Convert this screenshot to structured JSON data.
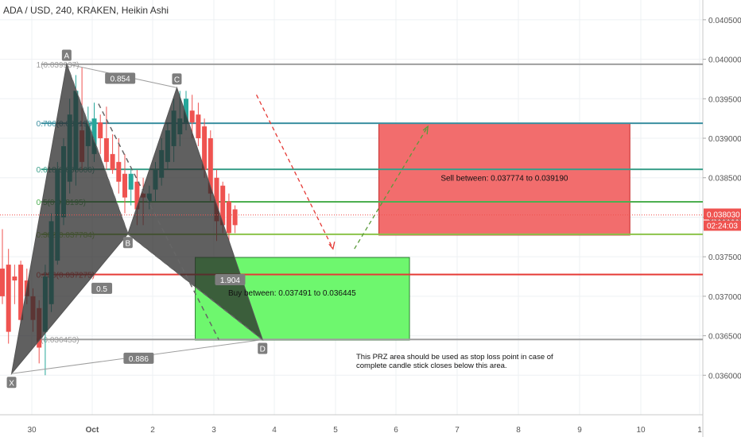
{
  "header": {
    "title": "ADA / USD, 240, KRAKEN, Heikin Ashi"
  },
  "chart_data": {
    "type": "candlestick",
    "symbol": "ADA / USD",
    "interval": "240",
    "exchange": "KRAKEN",
    "style": "Heikin Ashi",
    "ylim": [
      0.0355,
      0.04075
    ],
    "y_ticks": [
      "0.040500",
      "0.040000",
      "0.039500",
      "0.039000",
      "0.038500",
      "0.038000",
      "0.037500",
      "0.037000",
      "0.036500",
      "0.036000"
    ],
    "x_tick_labels": [
      "30",
      "Oct",
      "2",
      "3",
      "4",
      "5",
      "6",
      "7",
      "8",
      "9",
      "10",
      "1"
    ],
    "current_price": "0.038030",
    "countdown": "02:24:03",
    "colors": {
      "up": "#26a69a",
      "down": "#ef5350",
      "pattern_fill": "#2b2b2b",
      "sell_zone": "#f26d6d",
      "buy_zone": "#6ef76e"
    },
    "candles": [
      {
        "o": 0.03735,
        "h": 0.03785,
        "l": 0.0369,
        "c": 0.037
      },
      {
        "o": 0.0374,
        "h": 0.0376,
        "l": 0.0364,
        "c": 0.03655
      },
      {
        "o": 0.03725,
        "h": 0.0374,
        "l": 0.0369,
        "c": 0.0372
      },
      {
        "o": 0.0374,
        "h": 0.03745,
        "l": 0.03665,
        "c": 0.0367
      },
      {
        "o": 0.0372,
        "h": 0.03735,
        "l": 0.0369,
        "c": 0.037
      },
      {
        "o": 0.037,
        "h": 0.0371,
        "l": 0.03655,
        "c": 0.0367
      },
      {
        "o": 0.03685,
        "h": 0.03695,
        "l": 0.03615,
        "c": 0.03635
      },
      {
        "o": 0.03655,
        "h": 0.0374,
        "l": 0.036,
        "c": 0.03725
      },
      {
        "o": 0.0369,
        "h": 0.03805,
        "l": 0.0368,
        "c": 0.03795
      },
      {
        "o": 0.03745,
        "h": 0.0387,
        "l": 0.0374,
        "c": 0.0386
      },
      {
        "o": 0.038,
        "h": 0.039,
        "l": 0.0379,
        "c": 0.0389
      },
      {
        "o": 0.03845,
        "h": 0.0395,
        "l": 0.0383,
        "c": 0.0393
      },
      {
        "o": 0.0386,
        "h": 0.0398,
        "l": 0.0384,
        "c": 0.0396
      },
      {
        "o": 0.0391,
        "h": 0.0399,
        "l": 0.0386,
        "c": 0.0387
      },
      {
        "o": 0.0389,
        "h": 0.0394,
        "l": 0.0386,
        "c": 0.0392
      },
      {
        "o": 0.0388,
        "h": 0.03945,
        "l": 0.0387,
        "c": 0.03925
      },
      {
        "o": 0.0392,
        "h": 0.0393,
        "l": 0.0388,
        "c": 0.039
      },
      {
        "o": 0.039,
        "h": 0.0394,
        "l": 0.0386,
        "c": 0.0387
      },
      {
        "o": 0.0388,
        "h": 0.03905,
        "l": 0.03855,
        "c": 0.0386
      },
      {
        "o": 0.0387,
        "h": 0.039,
        "l": 0.0383,
        "c": 0.03845
      },
      {
        "o": 0.03855,
        "h": 0.0388,
        "l": 0.03805,
        "c": 0.03825
      },
      {
        "o": 0.03835,
        "h": 0.0386,
        "l": 0.03815,
        "c": 0.03855
      },
      {
        "o": 0.03845,
        "h": 0.0386,
        "l": 0.0379,
        "c": 0.0381
      },
      {
        "o": 0.0383,
        "h": 0.0385,
        "l": 0.0379,
        "c": 0.03825
      },
      {
        "o": 0.0382,
        "h": 0.0384,
        "l": 0.0381,
        "c": 0.0383
      },
      {
        "o": 0.03835,
        "h": 0.0387,
        "l": 0.0382,
        "c": 0.0386
      },
      {
        "o": 0.0385,
        "h": 0.039,
        "l": 0.0384,
        "c": 0.03885
      },
      {
        "o": 0.0387,
        "h": 0.0392,
        "l": 0.0386,
        "c": 0.0391
      },
      {
        "o": 0.0389,
        "h": 0.0395,
        "l": 0.0387,
        "c": 0.03935
      },
      {
        "o": 0.03905,
        "h": 0.0396,
        "l": 0.0389,
        "c": 0.03925
      },
      {
        "o": 0.0392,
        "h": 0.0396,
        "l": 0.0391,
        "c": 0.0395
      },
      {
        "o": 0.03935,
        "h": 0.03955,
        "l": 0.039,
        "c": 0.0392
      },
      {
        "o": 0.0393,
        "h": 0.03945,
        "l": 0.0389,
        "c": 0.039
      },
      {
        "o": 0.03915,
        "h": 0.03925,
        "l": 0.0385,
        "c": 0.0386
      },
      {
        "o": 0.039,
        "h": 0.0391,
        "l": 0.0382,
        "c": 0.0383
      },
      {
        "o": 0.0385,
        "h": 0.0386,
        "l": 0.0377,
        "c": 0.03795
      },
      {
        "o": 0.0384,
        "h": 0.03845,
        "l": 0.0378,
        "c": 0.0379
      },
      {
        "o": 0.0382,
        "h": 0.0383,
        "l": 0.0377,
        "c": 0.0378
      },
      {
        "o": 0.0381,
        "h": 0.03815,
        "l": 0.0378,
        "c": 0.0379
      }
    ],
    "fib_levels": [
      {
        "label": "1(0.039937)",
        "value": 0.039937,
        "color": "#9e9e9e"
      },
      {
        "label": "0.786(0.039190)",
        "value": 0.03919,
        "color": "#3a8fa0"
      },
      {
        "label": "0.618(0.038606)",
        "value": 0.038606,
        "color": "#3a9f8a"
      },
      {
        "label": "0.5(0.038195)",
        "value": 0.038195,
        "color": "#4caf50"
      },
      {
        "label": "0.382(0.037784)",
        "value": 0.037784,
        "color": "#8bc34a"
      },
      {
        "label": "0.236(0.037275)",
        "value": 0.037275,
        "color": "#e53935"
      },
      {
        "label": "0(0.036453)",
        "value": 0.036453,
        "color": "#9e9e9e"
      }
    ],
    "pattern_points": [
      {
        "name": "X",
        "bar": 1.5,
        "price": 0.03602
      },
      {
        "name": "A",
        "bar": 10.5,
        "price": 0.03994
      },
      {
        "name": "B",
        "bar": 20.5,
        "price": 0.03779
      },
      {
        "name": "C",
        "bar": 28.5,
        "price": 0.03964
      },
      {
        "name": "D",
        "bar": 42.5,
        "price": 0.03645
      }
    ],
    "ratios": [
      {
        "text": "0.854"
      },
      {
        "text": "0.5"
      },
      {
        "text": "1.904"
      },
      {
        "text": "0.886"
      }
    ],
    "zones": [
      {
        "kind": "sell",
        "text": "Sell between: 0.037774 to 0.039190",
        "top": 0.03919,
        "bottom": 0.037774,
        "start_bar": 61.5,
        "end_bar": 102.5
      },
      {
        "kind": "buy",
        "text": "Buy between: 0.037491 to 0.036445",
        "top": 0.037491,
        "bottom": 0.036445,
        "start_bar": 31.5,
        "end_bar": 66.5
      }
    ],
    "note": "This PRZ area should be used as stop loss point in case of complete candle stick closes below this area."
  }
}
